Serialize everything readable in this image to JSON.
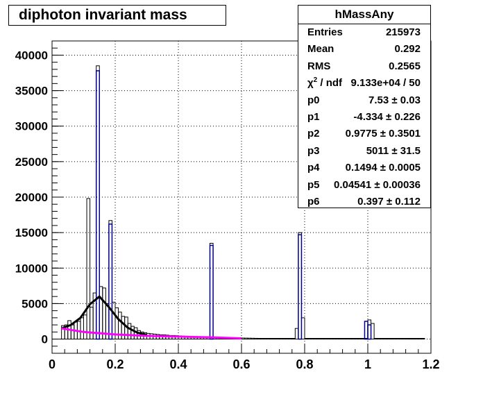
{
  "chart_data": {
    "type": "bar",
    "title": "diphoton invariant mass",
    "xlabel": "",
    "ylabel": "",
    "xlim": [
      0,
      1.2
    ],
    "ylim": [
      -2000,
      42000
    ],
    "grid": true,
    "x_ticks": [
      "0",
      "0.2",
      "0.4",
      "0.6",
      "0.8",
      "1",
      "1.2"
    ],
    "y_ticks": [
      "0",
      "5000",
      "10000",
      "15000",
      "20000",
      "25000",
      "30000",
      "35000",
      "40000"
    ],
    "bin_width": 0.01,
    "bins_x_start": [
      0.03,
      0.04,
      0.05,
      0.06,
      0.07,
      0.08,
      0.09,
      0.1,
      0.11,
      0.12,
      0.13,
      0.14,
      0.15,
      0.16,
      0.17,
      0.18,
      0.19,
      0.2,
      0.21,
      0.22,
      0.23,
      0.24,
      0.25,
      0.26,
      0.27,
      0.28,
      0.29,
      0.3,
      0.31,
      0.32,
      0.33,
      0.34,
      0.35,
      0.36,
      0.37,
      0.38,
      0.39,
      0.4,
      0.41,
      0.42,
      0.43,
      0.44,
      0.45,
      0.46,
      0.47,
      0.48,
      0.49,
      0.5,
      0.51,
      0.52,
      0.53,
      0.54,
      0.55,
      0.56,
      0.57,
      0.58,
      0.59,
      0.6,
      0.61,
      0.62,
      0.63,
      0.64,
      0.65,
      0.66,
      0.67,
      0.68,
      0.69,
      0.7,
      0.71,
      0.72,
      0.73,
      0.74,
      0.75,
      0.76,
      0.77,
      0.78,
      0.79,
      0.8,
      0.81,
      0.82,
      0.83,
      0.84,
      0.85,
      0.86,
      0.87,
      0.88,
      0.89,
      0.9,
      0.91,
      0.92,
      0.93,
      0.94,
      0.95,
      0.96,
      0.97,
      0.98,
      0.99,
      1.0,
      1.01,
      1.02,
      1.03,
      1.04,
      1.05,
      1.06,
      1.07,
      1.08,
      1.09,
      1.1,
      1.11,
      1.12,
      1.13,
      1.14,
      1.15,
      1.16,
      1.17,
      1.18,
      1.19
    ],
    "series": [
      {
        "color": "#000000",
        "values": [
          1900,
          2000,
          2600,
          2000,
          2400,
          2500,
          3000,
          3400,
          19800,
          4500,
          6500,
          38500,
          7400,
          7200,
          5000,
          16700,
          5200,
          4400,
          3800,
          3200,
          3100,
          2200,
          1800,
          1600,
          1200,
          1000,
          900,
          800,
          750,
          700,
          650,
          600,
          600,
          550,
          500,
          500,
          480,
          450,
          420,
          400,
          380,
          360,
          340,
          320,
          300,
          300,
          280,
          13500,
          250,
          240,
          220,
          200,
          200,
          190,
          180,
          170,
          160,
          150,
          140,
          130,
          120,
          110,
          100,
          100,
          100,
          100,
          100,
          100,
          100,
          100,
          100,
          100,
          100,
          100,
          1500,
          15000,
          3000,
          100,
          100,
          100,
          100,
          100,
          100,
          100,
          100,
          100,
          100,
          100,
          100,
          100,
          100,
          100,
          100,
          100,
          100,
          100,
          100,
          2700,
          2200,
          100,
          100,
          100,
          100,
          100,
          100,
          100,
          100,
          100,
          100,
          100,
          100,
          100,
          100,
          100,
          100
        ]
      },
      {
        "color": "#00008b",
        "values": [
          null,
          null,
          null,
          null,
          null,
          null,
          null,
          null,
          null,
          null,
          null,
          37800,
          null,
          null,
          null,
          16200,
          null,
          null,
          null,
          null,
          null,
          null,
          null,
          null,
          null,
          null,
          null,
          null,
          null,
          null,
          null,
          null,
          null,
          null,
          null,
          null,
          null,
          null,
          null,
          null,
          null,
          null,
          null,
          null,
          null,
          null,
          null,
          13200,
          null,
          null,
          null,
          null,
          null,
          null,
          null,
          null,
          null,
          null,
          null,
          null,
          null,
          null,
          null,
          null,
          null,
          null,
          null,
          null,
          null,
          null,
          null,
          null,
          null,
          null,
          null,
          14700,
          null,
          null,
          null,
          null,
          null,
          null,
          null,
          null,
          null,
          null,
          null,
          null,
          null,
          null,
          null,
          null,
          null,
          null,
          null,
          null,
          2500,
          2000,
          null,
          null,
          null,
          null,
          null,
          null,
          null,
          null,
          null,
          null,
          null,
          null,
          null,
          null,
          null,
          null
        ]
      }
    ],
    "fits": [
      {
        "color": "#000000",
        "kind": "gaussian",
        "x_range": [
          0.03,
          0.3
        ],
        "points": [
          [
            0.03,
            1500
          ],
          [
            0.06,
            2000
          ],
          [
            0.09,
            3000
          ],
          [
            0.12,
            4900
          ],
          [
            0.15,
            6000
          ],
          [
            0.18,
            4500
          ],
          [
            0.21,
            2800
          ],
          [
            0.24,
            1600
          ],
          [
            0.27,
            900
          ],
          [
            0.3,
            600
          ]
        ]
      },
      {
        "color": "#ff00ff",
        "kind": "background",
        "x_range": [
          0.03,
          0.6
        ],
        "points": [
          [
            0.03,
            1500
          ],
          [
            0.1,
            1000
          ],
          [
            0.2,
            650
          ],
          [
            0.3,
            450
          ],
          [
            0.4,
            350
          ],
          [
            0.5,
            250
          ],
          [
            0.6,
            100
          ]
        ]
      }
    ]
  },
  "stats": {
    "title": "hMassAny",
    "rows": [
      {
        "label": "Entries",
        "value": "215973"
      },
      {
        "label": "Mean",
        "value": "0.292"
      },
      {
        "label": "RMS",
        "value": "0.2565"
      },
      {
        "label": "χ",
        "label_sup": "2",
        "label_suffix": " / ndf",
        "value": "9.133e+04 / 50"
      },
      {
        "label": "p0",
        "value": "7.53 ± 0.03"
      },
      {
        "label": "p1",
        "value": "-4.334 ± 0.226"
      },
      {
        "label": "p2",
        "value": "0.9775 ± 0.3501"
      },
      {
        "label": "p3",
        "value": "5011 ± 31.5"
      },
      {
        "label": "p4",
        "value": "0.1494 ± 0.0005"
      },
      {
        "label": "p5",
        "value": "0.04541 ± 0.00036"
      },
      {
        "label": "p6",
        "value": "0.397 ± 0.112"
      }
    ]
  }
}
